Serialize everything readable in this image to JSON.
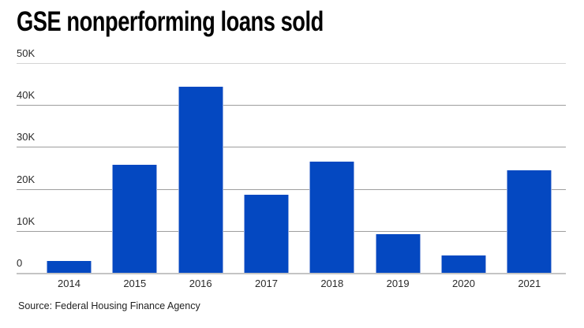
{
  "title": "GSE nonperforming loans sold",
  "source_note": "Source: Federal Housing Finance Agency",
  "colors": {
    "bar": "#0448c1",
    "bar_edge": "#8fa9e0",
    "grid": "#9e9e9e",
    "grid_top": "#d4d4d4",
    "axis_baseline": "#c4c4c4",
    "title_text": "#000000",
    "tick_text": "#2a2a2a"
  },
  "chart_data": {
    "type": "bar",
    "title": "GSE nonperforming loans sold",
    "categories": [
      "2014",
      "2015",
      "2016",
      "2017",
      "2018",
      "2019",
      "2020",
      "2021"
    ],
    "values": [
      2900,
      25700,
      44300,
      18600,
      26600,
      9300,
      4100,
      24400
    ],
    "unit": "loans",
    "xlabel": "",
    "ylabel": "",
    "ylim": [
      0,
      50000
    ],
    "yticks": [
      {
        "value": 0,
        "label": "0"
      },
      {
        "value": 10000,
        "label": "10K"
      },
      {
        "value": 20000,
        "label": "20K"
      },
      {
        "value": 30000,
        "label": "30K"
      },
      {
        "value": 40000,
        "label": "40K"
      },
      {
        "value": 50000,
        "label": "50K"
      }
    ],
    "grid": "horizontal",
    "legend": "none",
    "source": "Source: Federal Housing Finance Agency"
  }
}
